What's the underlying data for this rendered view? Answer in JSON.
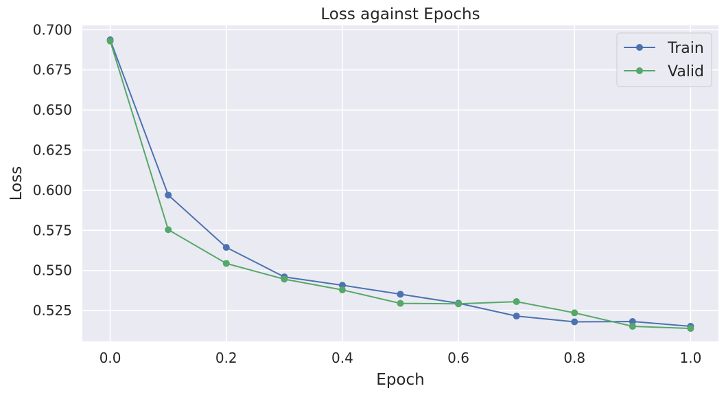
{
  "chart_data": {
    "type": "line",
    "title": "Loss against Epochs",
    "xlabel": "Epoch",
    "ylabel": "Loss",
    "xlim": [
      -0.048,
      1.048
    ],
    "ylim": [
      0.5058,
      0.7027
    ],
    "grid": true,
    "legend_position": "top-right",
    "x_ticks": [
      0.0,
      0.2,
      0.4,
      0.6,
      0.8,
      1.0
    ],
    "x_tick_labels": [
      "0.0",
      "0.2",
      "0.4",
      "0.6",
      "0.8",
      "1.0"
    ],
    "y_ticks": [
      0.525,
      0.55,
      0.575,
      0.6,
      0.625,
      0.65,
      0.675,
      0.7
    ],
    "y_tick_labels": [
      "0.525",
      "0.550",
      "0.575",
      "0.600",
      "0.625",
      "0.650",
      "0.675",
      "0.700"
    ],
    "x": [
      0.0,
      0.1,
      0.2,
      0.3,
      0.4,
      0.5,
      0.6,
      0.7,
      0.8,
      0.9,
      1.0
    ],
    "series": [
      {
        "name": "Train",
        "color": "#4c72b0",
        "values": [
          0.6937,
          0.597,
          0.5644,
          0.546,
          0.5408,
          0.5352,
          0.5296,
          0.5216,
          0.518,
          0.5182,
          0.5152
        ]
      },
      {
        "name": "Valid",
        "color": "#55a868",
        "values": [
          0.693,
          0.5754,
          0.5544,
          0.5446,
          0.5379,
          0.5295,
          0.5292,
          0.5306,
          0.5236,
          0.5152,
          0.5139
        ]
      }
    ],
    "background_color": "#eaeaf2",
    "grid_color": "#ffffff"
  }
}
